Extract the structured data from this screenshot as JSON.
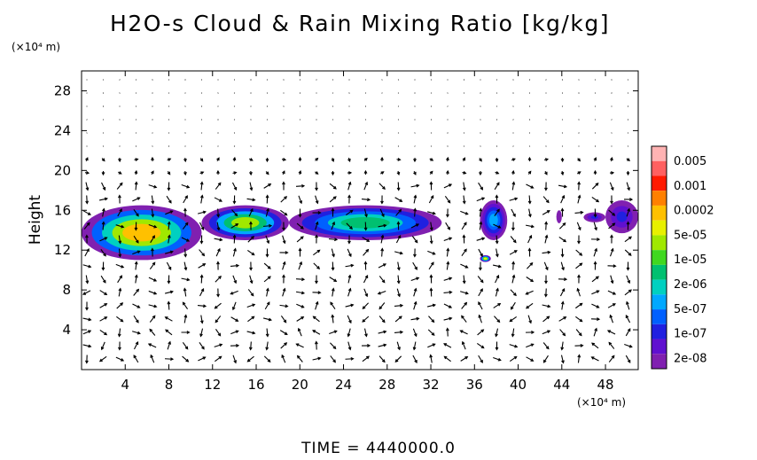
{
  "chart_data": {
    "type": "heatmap",
    "title": "H2O-s Cloud & Rain Mixing Ratio [kg/kg]",
    "ylabel": "Height",
    "x_unit": "(×10⁴ m)",
    "y_unit": "(×10⁴ m)",
    "xlim": [
      0,
      51
    ],
    "ylim": [
      0,
      30
    ],
    "x_ticks": [
      "4",
      "8",
      "12",
      "16",
      "20",
      "24",
      "28",
      "32",
      "36",
      "40",
      "44",
      "48"
    ],
    "y_ticks": [
      "4",
      "8",
      "12",
      "16",
      "20",
      "24",
      "28"
    ],
    "colorbar": {
      "labels": [
        "0.005",
        "0.001",
        "0.0002",
        "5e-05",
        "1e-05",
        "2e-06",
        "5e-07",
        "1e-07",
        "2e-08"
      ],
      "colors": [
        "#ffb3b3",
        "#ff6060",
        "#ff1a00",
        "#ff8000",
        "#ffc000",
        "#e8f000",
        "#a0e800",
        "#40d820",
        "#00c070",
        "#00d0c0",
        "#00a8ff",
        "#0060ff",
        "#2020e0",
        "#6010d0",
        "#8020b0"
      ]
    },
    "cloud_regions": [
      {
        "x": [
          0,
          11
        ],
        "y": [
          11,
          16.5
        ],
        "peak": 0.0002
      },
      {
        "x": [
          11,
          19
        ],
        "y": [
          13,
          16.5
        ],
        "peak": 2e-05
      },
      {
        "x": [
          19,
          33
        ],
        "y": [
          13,
          16.5
        ],
        "peak": 5e-06
      },
      {
        "x": [
          36.5,
          39
        ],
        "y": [
          13,
          17
        ],
        "peak": 5e-07
      },
      {
        "x": [
          36.5,
          37.5
        ],
        "y": [
          10.8,
          11.5
        ],
        "peak": 5e-05
      },
      {
        "x": [
          43.5,
          44
        ],
        "y": [
          14.7,
          16
        ],
        "peak": 2e-08
      },
      {
        "x": [
          46,
          48
        ],
        "y": [
          14.8,
          15.8
        ],
        "peak": 1e-07
      },
      {
        "x": [
          48,
          51
        ],
        "y": [
          13.7,
          17
        ],
        "peak": 1e-07
      }
    ],
    "grid": false,
    "vector_field": true,
    "legend": "right"
  },
  "footer": {
    "time_label": "TIME = 4440000.0"
  }
}
